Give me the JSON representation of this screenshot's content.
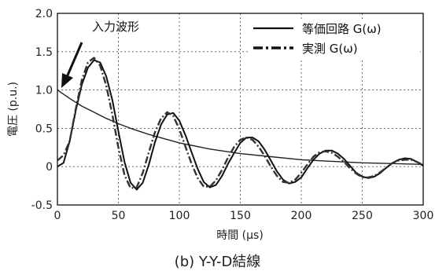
{
  "chart_data": {
    "type": "line",
    "caption": "(b) Y-Y-D結線",
    "xlabel": "時間 (μs)",
    "ylabel": "電圧 (p.u.)",
    "xlim": [
      0,
      300
    ],
    "ylim": [
      -0.5,
      2.0
    ],
    "xticks": [
      0,
      50,
      100,
      150,
      200,
      250,
      300
    ],
    "yticks": [
      -0.5,
      0,
      0.5,
      1.0,
      1.5,
      2.0
    ],
    "ytick_labels": [
      "-0.5",
      "0",
      "0.5",
      "1.0",
      "1.5",
      "2.0"
    ],
    "grid": true,
    "legend_position": "top-right",
    "annotation": {
      "text": "入力波形",
      "points_to": [
        0,
        1.0
      ]
    },
    "series": [
      {
        "name": "入力波形",
        "style": "solid-thin",
        "x": [
          0,
          10,
          20,
          30,
          40,
          50,
          60,
          75,
          100,
          125,
          150,
          175,
          200,
          225,
          250,
          275,
          300
        ],
        "y": [
          1.0,
          0.89,
          0.79,
          0.71,
          0.63,
          0.56,
          0.5,
          0.42,
          0.31,
          0.23,
          0.17,
          0.13,
          0.09,
          0.07,
          0.05,
          0.04,
          0.03
        ]
      },
      {
        "name": "等価回路 G(ω)",
        "style": "solid",
        "x": [
          0,
          5,
          10,
          15,
          20,
          25,
          30,
          35,
          40,
          45,
          50,
          55,
          60,
          65,
          70,
          75,
          80,
          85,
          90,
          95,
          100,
          105,
          110,
          115,
          120,
          125,
          130,
          135,
          140,
          145,
          150,
          155,
          160,
          165,
          170,
          175,
          180,
          185,
          190,
          195,
          200,
          205,
          210,
          215,
          220,
          225,
          230,
          235,
          240,
          245,
          250,
          255,
          260,
          265,
          270,
          275,
          280,
          285,
          290,
          295,
          300
        ],
        "y": [
          0.0,
          0.05,
          0.33,
          0.73,
          1.07,
          1.29,
          1.39,
          1.36,
          1.18,
          0.87,
          0.46,
          0.06,
          -0.21,
          -0.3,
          -0.21,
          0.03,
          0.32,
          0.55,
          0.68,
          0.7,
          0.6,
          0.41,
          0.19,
          -0.03,
          -0.2,
          -0.27,
          -0.24,
          -0.12,
          0.04,
          0.18,
          0.31,
          0.38,
          0.38,
          0.33,
          0.22,
          0.08,
          -0.06,
          -0.17,
          -0.22,
          -0.2,
          -0.14,
          -0.02,
          0.09,
          0.17,
          0.21,
          0.21,
          0.17,
          0.1,
          0.01,
          -0.08,
          -0.13,
          -0.15,
          -0.13,
          -0.08,
          -0.01,
          0.05,
          0.09,
          0.11,
          0.1,
          0.06,
          0.01
        ]
      },
      {
        "name": "実測 G(ω)",
        "style": "dash-dot",
        "x": [
          0,
          5,
          10,
          15,
          20,
          25,
          30,
          35,
          40,
          45,
          50,
          55,
          60,
          65,
          70,
          75,
          80,
          85,
          90,
          95,
          100,
          105,
          110,
          115,
          120,
          125,
          130,
          135,
          140,
          145,
          150,
          155,
          160,
          165,
          170,
          175,
          180,
          185,
          190,
          195,
          200,
          205,
          210,
          215,
          220,
          225,
          230,
          235,
          240,
          245,
          250,
          255,
          260,
          265,
          270,
          275,
          280,
          285,
          290,
          295,
          300
        ],
        "y": [
          0.08,
          0.15,
          0.33,
          0.75,
          1.13,
          1.36,
          1.42,
          1.32,
          1.06,
          0.68,
          0.25,
          -0.11,
          -0.28,
          -0.27,
          -0.08,
          0.19,
          0.45,
          0.63,
          0.71,
          0.66,
          0.49,
          0.26,
          0.04,
          -0.15,
          -0.26,
          -0.26,
          -0.18,
          -0.04,
          0.12,
          0.26,
          0.35,
          0.38,
          0.35,
          0.26,
          0.14,
          0.0,
          -0.12,
          -0.2,
          -0.21,
          -0.17,
          -0.08,
          0.03,
          0.13,
          0.19,
          0.2,
          0.18,
          0.13,
          0.06,
          -0.02,
          -0.09,
          -0.14,
          -0.14,
          -0.12,
          -0.07,
          -0.01,
          0.05,
          0.08,
          0.09,
          0.09,
          0.06,
          0.02
        ]
      }
    ]
  }
}
